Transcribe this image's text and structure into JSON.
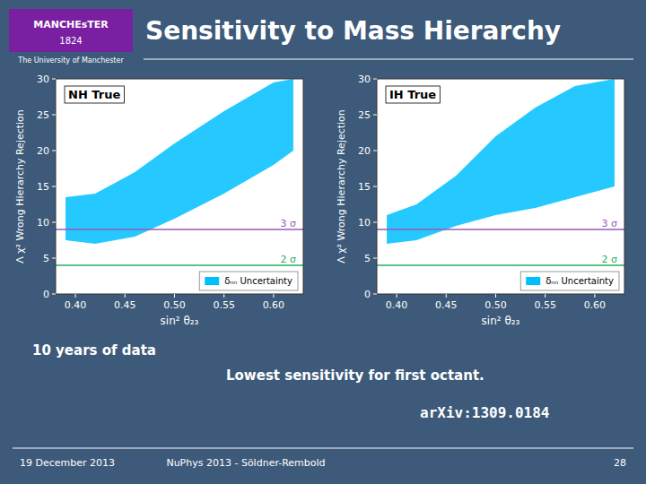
{
  "title": "Sensitivity to Mass Hierarchy",
  "annotations": [
    "MANCHEsTER",
    "1824",
    "The University of Manchester",
    "10 years of data",
    "Lowest sensitivity for first octant.",
    "arXiv:1309.0184",
    "19 December 2013",
    "NuPhys 2013 - Söldner-Rembold",
    "28"
  ],
  "chart_data": [
    {
      "type": "area",
      "title": "NH True",
      "xlabel": "sin² θ₂₃",
      "ylabel": "Λ χ² Wrong Hierarchy Rejection",
      "xlim": [
        0.38,
        0.63
      ],
      "ylim": [
        0,
        30
      ],
      "xticks": [
        {
          "value": 0.4,
          "label": "0.40"
        },
        0.45,
        {
          "value": 0.5,
          "label": "0.50"
        },
        0.55,
        {
          "value": 0.6,
          "label": "0.60"
        }
      ],
      "yticks": [
        0,
        5,
        10,
        15,
        20,
        25,
        30
      ],
      "grid": false,
      "legend": "lower right",
      "series": [
        {
          "name": "δₙₙ Uncertainty",
          "color": "#00bfff",
          "x": [
            0.39,
            0.42,
            0.46,
            0.5,
            0.55,
            0.6,
            0.62
          ],
          "lower": [
            7.5,
            7.0,
            8.0,
            10.5,
            14.0,
            18.0,
            20.0
          ],
          "upper": [
            13.5,
            14.0,
            17.0,
            21.0,
            25.5,
            29.5,
            30.0
          ]
        }
      ],
      "annotations": [
        {
          "text": "3 σ",
          "y": 9,
          "color": "#9b59b6"
        },
        {
          "text": "2 σ",
          "y": 4,
          "color": "#27ae60"
        }
      ]
    },
    {
      "type": "area",
      "title": "IH True",
      "xlabel": "sin² θ₂₃",
      "ylabel": "Λ χ² Wrong Hierarchy Rejection",
      "xlim": [
        0.38,
        0.63
      ],
      "ylim": [
        0,
        30
      ],
      "xticks": [
        {
          "value": 0.4,
          "label": "0.40"
        },
        0.45,
        {
          "value": 0.5,
          "label": "0.50"
        },
        0.55,
        {
          "value": 0.6,
          "label": "0.60"
        }
      ],
      "yticks": [
        0,
        5,
        10,
        15,
        20,
        25,
        30
      ],
      "grid": false,
      "legend": "lower right",
      "series": [
        {
          "name": "δₙₙ Uncertainty",
          "color": "#00bfff",
          "x": [
            0.39,
            0.42,
            0.46,
            0.5,
            0.54,
            0.58,
            0.62
          ],
          "lower": [
            7.0,
            7.5,
            9.5,
            11.0,
            12.0,
            13.5,
            15.0
          ],
          "upper": [
            11.0,
            12.5,
            16.5,
            22.0,
            26.0,
            29.0,
            30.0
          ]
        }
      ],
      "annotations": [
        {
          "text": "3 σ",
          "y": 9,
          "color": "#9b59b6"
        },
        {
          "text": "2 σ",
          "y": 4,
          "color": "#27ae60"
        }
      ]
    }
  ]
}
